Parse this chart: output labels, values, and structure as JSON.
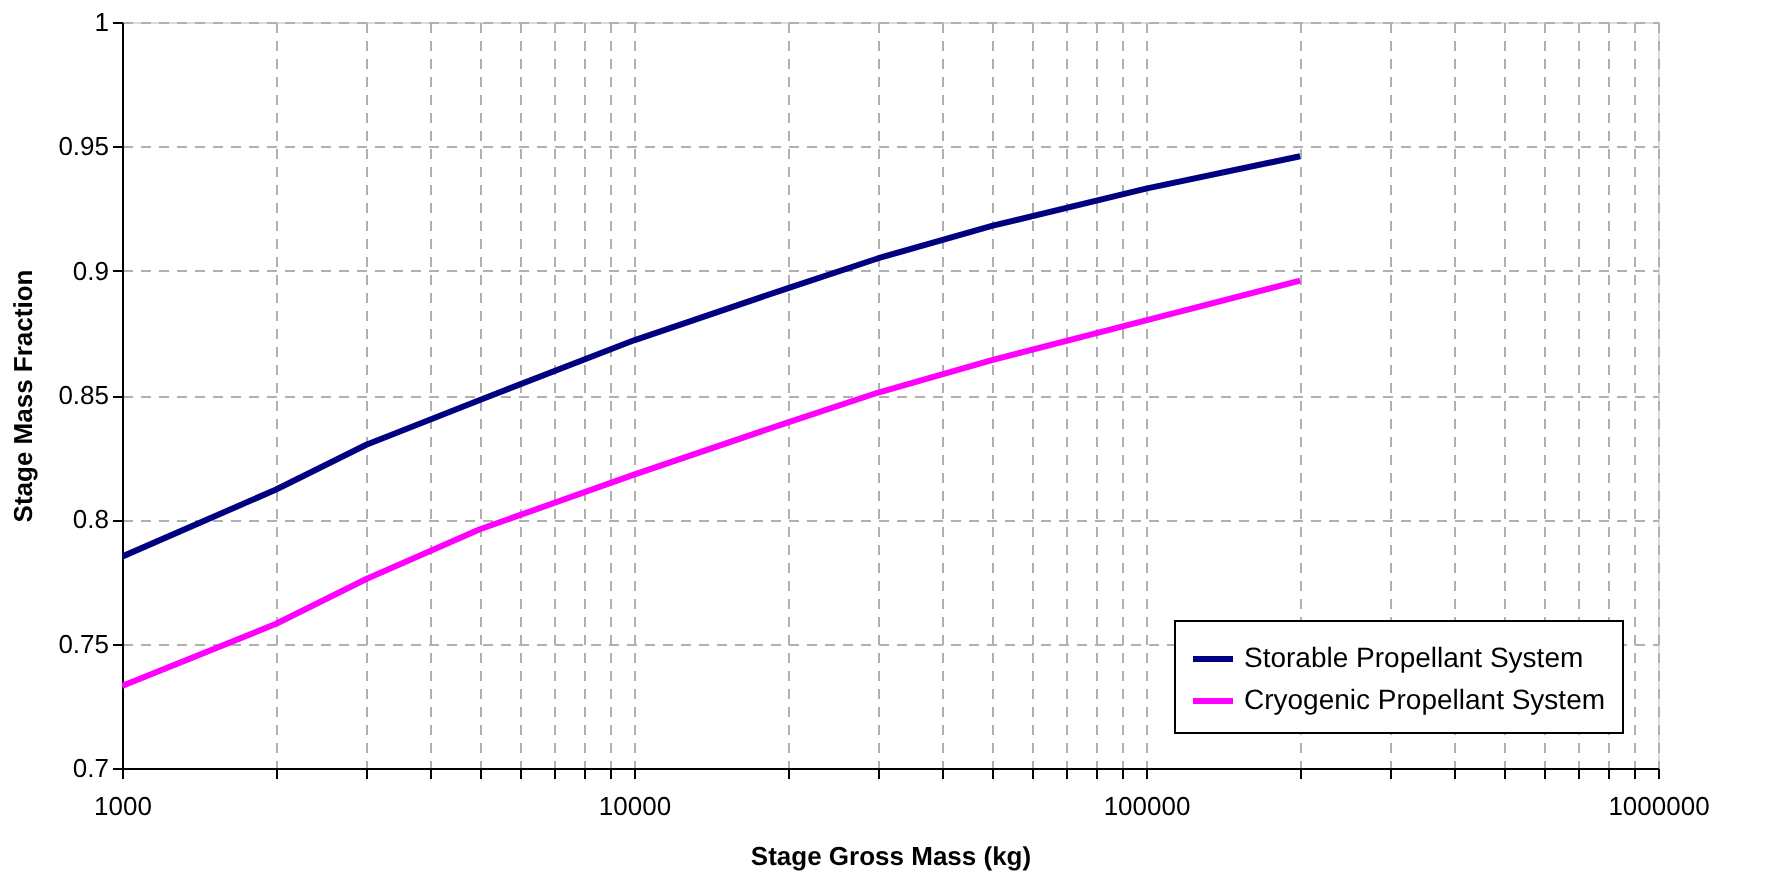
{
  "chart_data": {
    "type": "line",
    "xlabel": "Stage Gross Mass (kg)",
    "ylabel": "Stage Mass Fraction",
    "log": "x",
    "grid": true,
    "legend": "bottom right",
    "line_style": "solid",
    "marker": "none",
    "xlim": [
      1000,
      1000000
    ],
    "ylim": [
      0.7,
      1
    ],
    "xticks": [
      1000,
      {
        "value": 2000,
        "label": null
      },
      {
        "value": 3000,
        "label": null
      },
      {
        "value": 4000,
        "label": null
      },
      {
        "value": 5000,
        "label": null
      },
      {
        "value": 6000,
        "label": null
      },
      {
        "value": 7000,
        "label": null
      },
      {
        "value": 8000,
        "label": null
      },
      {
        "value": 9000,
        "label": null
      },
      10000,
      {
        "value": 20000,
        "label": null
      },
      {
        "value": 30000,
        "label": null
      },
      {
        "value": 40000,
        "label": null
      },
      {
        "value": 50000,
        "label": null
      },
      {
        "value": 60000,
        "label": null
      },
      {
        "value": 70000,
        "label": null
      },
      {
        "value": 80000,
        "label": null
      },
      {
        "value": 90000,
        "label": null
      },
      100000,
      {
        "value": 200000,
        "label": null
      },
      {
        "value": 300000,
        "label": null
      },
      {
        "value": 400000,
        "label": null
      },
      {
        "value": 500000,
        "label": null
      },
      {
        "value": 600000,
        "label": null
      },
      {
        "value": 700000,
        "label": null
      },
      {
        "value": 800000,
        "label": null
      },
      {
        "value": 900000,
        "label": null
      },
      1000000
    ],
    "yticks": [
      0.7,
      0.75,
      0.8,
      0.85,
      0.9,
      0.95,
      1
    ],
    "x": [
      1000,
      2000,
      3000,
      5000,
      10000,
      20000,
      30000,
      50000,
      100000,
      200000
    ],
    "series": [
      {
        "name": "Storable Propellant System",
        "color": "#000080",
        "values": [
          0.785,
          0.812,
          0.83,
          0.848,
          0.872,
          0.893,
          0.905,
          0.918,
          0.933,
          0.946
        ]
      },
      {
        "name": "Cryogenic Propellant System",
        "color": "#ff00ff",
        "values": [
          0.733,
          0.758,
          0.776,
          0.796,
          0.818,
          0.839,
          0.851,
          0.864,
          0.88,
          0.896
        ]
      }
    ]
  }
}
